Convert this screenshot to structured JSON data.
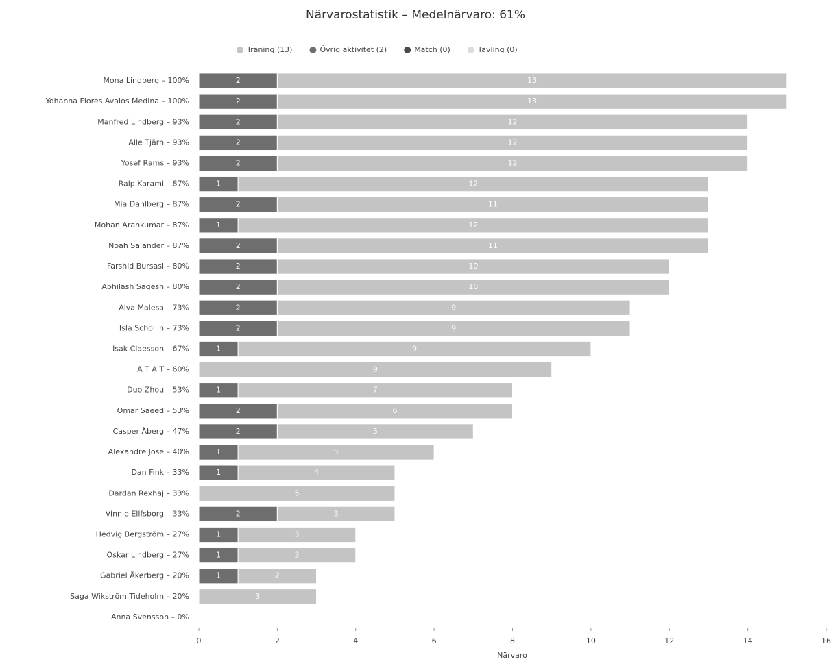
{
  "chart_data": {
    "type": "stacked-barh",
    "title": "Närvarostatistik – Medelnärvaro: 61%",
    "xlabel": "Närvaro",
    "categories": [
      "Mona Lindberg – 100%",
      "Yohanna Flores Avalos Medina – 100%",
      "Manfred Lindberg – 93%",
      "Alle Tjärn – 93%",
      "Yosef Rams – 93%",
      "Ralp Karami – 87%",
      "Mia Dahlberg – 87%",
      "Mohan Arankumar – 87%",
      "Noah Salander – 87%",
      "Farshid Bursasi – 80%",
      "Abhilash Sagesh – 80%",
      "Alva Malesa – 73%",
      "Isla Schollin – 73%",
      "Isak Claesson – 67%",
      "A T A T – 60%",
      "Duo Zhou – 53%",
      "Omar Saeed – 53%",
      "Casper Åberg – 47%",
      "Alexandre Jose – 40%",
      "Dan Fink – 33%",
      "Dardan Rexhaj – 33%",
      "Vinnie Ellfsborg – 33%",
      "Hedvig Bergström – 27%",
      "Oskar Lindberg – 27%",
      "Gabriel Åkerberg – 20%",
      "Saga Wikström Tideholm – 20%",
      "Anna Svensson – 0%"
    ],
    "series": [
      {
        "name": "Träning (13)",
        "color": "#c4c4c4",
        "values": [
          13,
          13,
          12,
          12,
          12,
          12,
          11,
          12,
          11,
          10,
          10,
          9,
          9,
          9,
          9,
          7,
          6,
          5,
          5,
          4,
          5,
          3,
          3,
          3,
          2,
          3,
          0
        ]
      },
      {
        "name": "Övrig aktivitet (2)",
        "color": "#6e6e6e",
        "values": [
          2,
          2,
          2,
          2,
          2,
          1,
          2,
          1,
          2,
          2,
          2,
          2,
          2,
          1,
          0,
          1,
          2,
          2,
          1,
          1,
          0,
          2,
          1,
          1,
          1,
          0,
          0
        ]
      },
      {
        "name": "Match (0)",
        "color": "#4a4a4a",
        "values": [
          0,
          0,
          0,
          0,
          0,
          0,
          0,
          0,
          0,
          0,
          0,
          0,
          0,
          0,
          0,
          0,
          0,
          0,
          0,
          0,
          0,
          0,
          0,
          0,
          0,
          0,
          0
        ]
      },
      {
        "name": "Tävling (0)",
        "color": "#dcdcdc",
        "values": [
          0,
          0,
          0,
          0,
          0,
          0,
          0,
          0,
          0,
          0,
          0,
          0,
          0,
          0,
          0,
          0,
          0,
          0,
          0,
          0,
          0,
          0,
          0,
          0,
          0,
          0,
          0
        ]
      }
    ],
    "xlim": [
      0,
      16
    ],
    "xticks": [
      0,
      2,
      4,
      6,
      8,
      10,
      12,
      14,
      16
    ]
  }
}
